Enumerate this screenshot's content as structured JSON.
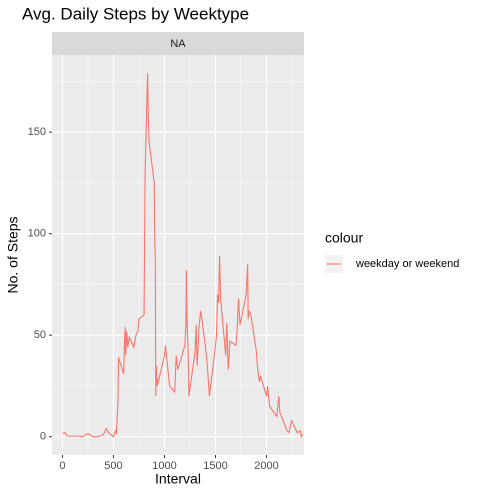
{
  "chart_data": {
    "type": "line",
    "title": "Avg. Daily Steps by Weektype",
    "facet_label": "NA",
    "x_label": "Interval",
    "y_label": "No. of Steps",
    "legend_title": "colour",
    "legend_position": "right",
    "grid": true,
    "xlim": [
      -102,
      2367
    ],
    "ylim": [
      -9,
      188
    ],
    "xticks": [
      0,
      500,
      1000,
      1500,
      2000
    ],
    "yticks": [
      0,
      50,
      100,
      150
    ],
    "x": [
      0,
      25,
      50,
      100,
      150,
      200,
      250,
      300,
      350,
      400,
      430,
      450,
      500,
      520,
      530,
      545,
      550,
      600,
      610,
      615,
      620,
      630,
      640,
      655,
      700,
      720,
      740,
      750,
      800,
      810,
      820,
      830,
      835,
      840,
      850,
      900,
      905,
      910,
      915,
      920,
      930,
      1000,
      1010,
      1030,
      1050,
      1100,
      1115,
      1130,
      1200,
      1210,
      1215,
      1220,
      1235,
      1240,
      1300,
      1310,
      1320,
      1340,
      1355,
      1400,
      1420,
      1440,
      1500,
      1510,
      1520,
      1530,
      1540,
      1550,
      1600,
      1610,
      1625,
      1640,
      1700,
      1710,
      1725,
      1740,
      1800,
      1815,
      1820,
      1830,
      1850,
      1900,
      1910,
      1930,
      1940,
      2000,
      2010,
      2030,
      2100,
      2120,
      2130,
      2200,
      2220,
      2245,
      2300,
      2330,
      2340,
      2355
    ],
    "series": [
      {
        "name": "weekday or weekend",
        "color": "#F8766D",
        "values": [
          1.7,
          2,
          0.3,
          0.3,
          0.3,
          0,
          1.5,
          0,
          0,
          1,
          4,
          2,
          0,
          3,
          2,
          18,
          39,
          31,
          49,
          54,
          40,
          52,
          44,
          49,
          44,
          50,
          52,
          58,
          60,
          129,
          150,
          171,
          179,
          160,
          145,
          125,
          95,
          90,
          20,
          35,
          25,
          40,
          45,
          35,
          25,
          22,
          40,
          33,
          45,
          55,
          82,
          60,
          35,
          20,
          42,
          55,
          35,
          55,
          62,
          45,
          35,
          20,
          45,
          50,
          70,
          66,
          89,
          68,
          40,
          56,
          33,
          47,
          45,
          51,
          68,
          55,
          70,
          85,
          58,
          62,
          59,
          42,
          35,
          27,
          30,
          20,
          25,
          15,
          10,
          20,
          12,
          3,
          2,
          8,
          2,
          3,
          0,
          1
        ]
      }
    ]
  }
}
